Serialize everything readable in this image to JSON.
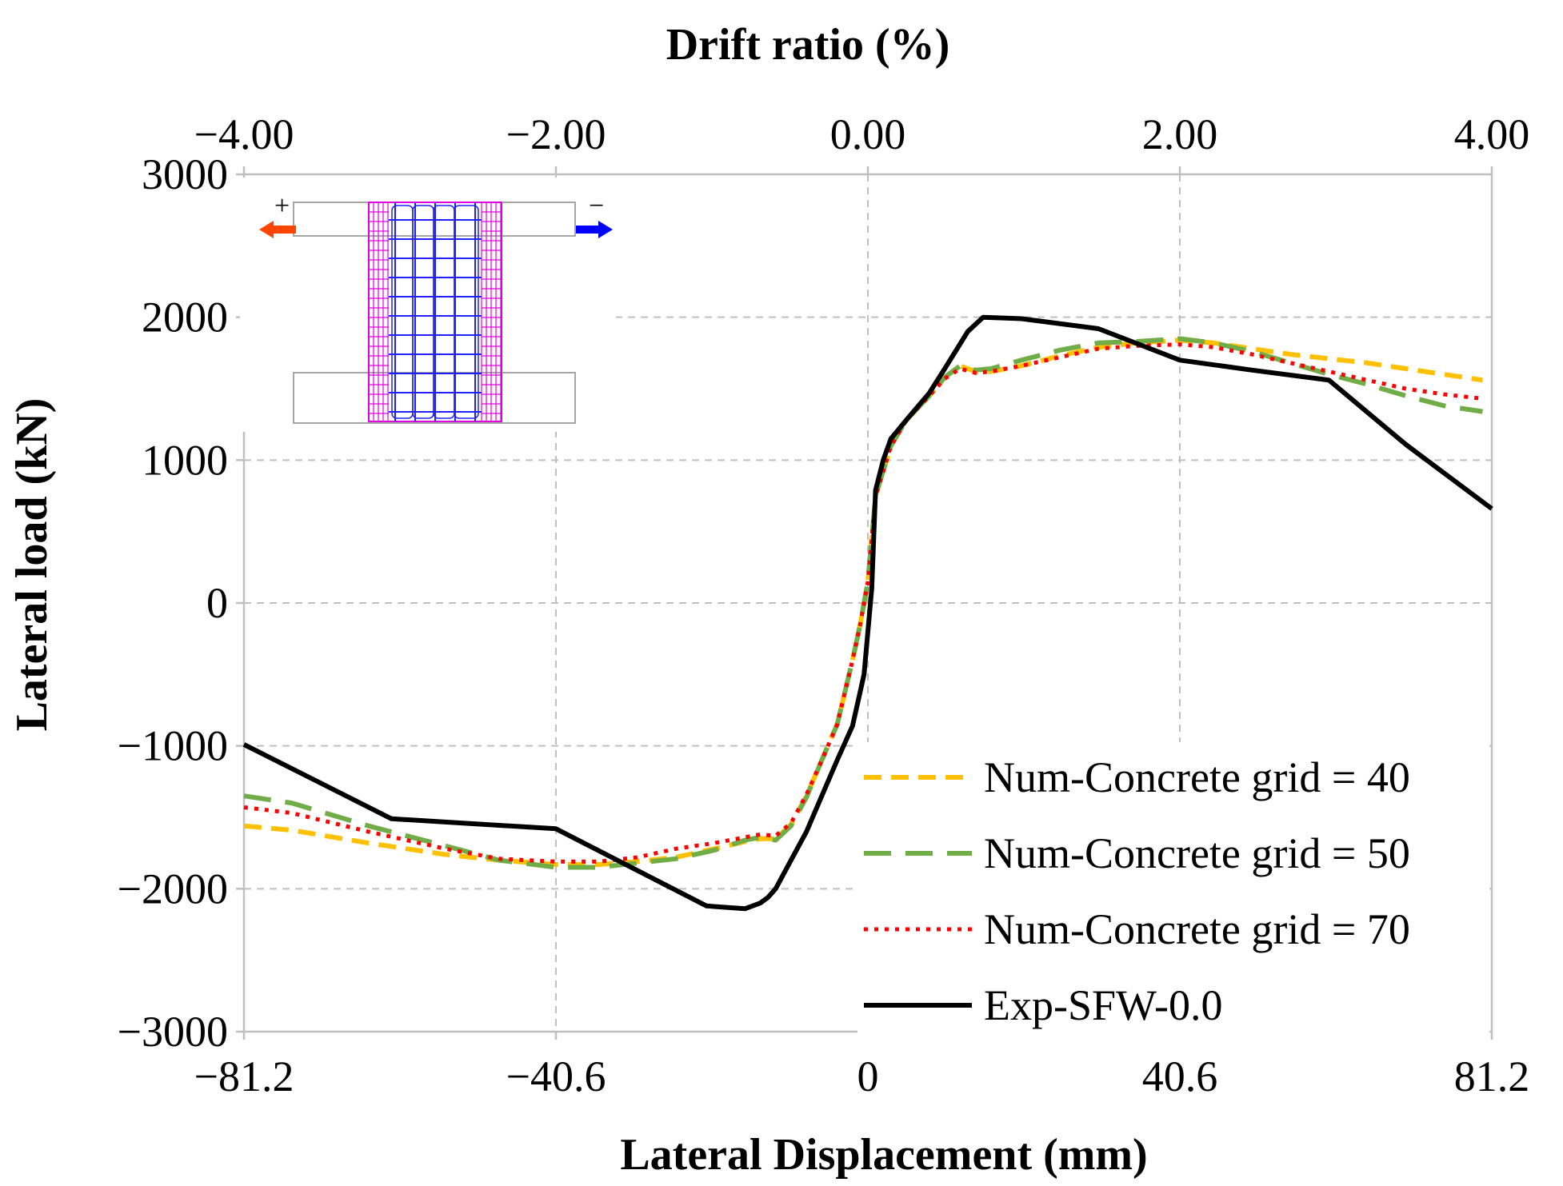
{
  "chart_data": {
    "type": "line",
    "xlabel": "Lateral Displacement (mm)",
    "x2label": "Drift ratio (%)",
    "ylabel": "Lateral load (kN)",
    "xlim": [
      -81.2,
      81.2
    ],
    "ylim": [
      -3000,
      3000
    ],
    "x_ticks": [
      "−81.2",
      "−40.6",
      "0",
      "40.6",
      "81.2"
    ],
    "x2_ticks": [
      "−4.00",
      "−2.00",
      "0.00",
      "2.00",
      "4.00"
    ],
    "y_ticks": [
      "3000",
      "2000",
      "1000",
      "0",
      "−1000",
      "−2000",
      "−3000"
    ],
    "grid": true,
    "legend_position": "bottom-right",
    "inset": {
      "plus": "+",
      "minus": "−"
    },
    "series": [
      {
        "name": "Num-Concrete grid = 40",
        "color": "#FFC000",
        "style": "dashed",
        "x": [
          -81.2,
          -75,
          -65,
          -55,
          -48,
          -40.6,
          -35,
          -30,
          -25,
          -20,
          -16,
          -14,
          -12,
          -10,
          -8,
          -6,
          -4,
          -2,
          -1,
          0,
          1,
          3,
          5,
          8,
          10,
          12,
          14,
          16,
          20,
          25,
          30,
          35,
          40.6,
          45,
          50,
          55,
          60,
          65,
          70,
          75,
          80
        ],
        "y": [
          -1560,
          -1590,
          -1680,
          -1760,
          -1800,
          -1830,
          -1830,
          -1810,
          -1780,
          -1720,
          -1670,
          -1650,
          -1650,
          -1550,
          -1350,
          -1100,
          -850,
          -400,
          -150,
          150,
          750,
          1100,
          1280,
          1450,
          1580,
          1660,
          1620,
          1620,
          1660,
          1730,
          1790,
          1820,
          1840,
          1820,
          1780,
          1740,
          1710,
          1680,
          1640,
          1600,
          1560
        ]
      },
      {
        "name": "Num-Concrete grid = 50",
        "color": "#70AD47",
        "style": "long-dashed",
        "x": [
          -81.2,
          -75,
          -65,
          -55,
          -48,
          -40.6,
          -35,
          -30,
          -25,
          -20,
          -16,
          -14,
          -12,
          -10,
          -8,
          -6,
          -4,
          -2,
          -1,
          0,
          1,
          3,
          5,
          8,
          10,
          12,
          14,
          16,
          20,
          25,
          30,
          35,
          40.6,
          45,
          50,
          55,
          60,
          65,
          70,
          75,
          80
        ],
        "y": [
          -1350,
          -1400,
          -1560,
          -1700,
          -1800,
          -1850,
          -1850,
          -1820,
          -1790,
          -1730,
          -1660,
          -1640,
          -1660,
          -1560,
          -1360,
          -1100,
          -850,
          -400,
          -150,
          150,
          750,
          1100,
          1280,
          1450,
          1580,
          1660,
          1630,
          1640,
          1700,
          1770,
          1820,
          1830,
          1850,
          1820,
          1760,
          1680,
          1600,
          1530,
          1450,
          1380,
          1340
        ]
      },
      {
        "name": "Num-Concrete grid = 70",
        "color": "#FF0000",
        "style": "dotted",
        "x": [
          -81.2,
          -75,
          -65,
          -55,
          -48,
          -40.6,
          -35,
          -30,
          -25,
          -20,
          -16,
          -14,
          -12,
          -10,
          -8,
          -6,
          -4,
          -2,
          -1,
          0,
          1,
          3,
          5,
          8,
          10,
          12,
          14,
          16,
          20,
          25,
          30,
          35,
          40.6,
          45,
          50,
          55,
          60,
          65,
          70,
          75,
          80
        ],
        "y": [
          -1430,
          -1470,
          -1600,
          -1720,
          -1790,
          -1810,
          -1810,
          -1780,
          -1720,
          -1680,
          -1640,
          -1620,
          -1630,
          -1540,
          -1340,
          -1100,
          -850,
          -400,
          -150,
          150,
          750,
          1100,
          1280,
          1450,
          1570,
          1640,
          1610,
          1620,
          1660,
          1720,
          1780,
          1800,
          1810,
          1790,
          1740,
          1680,
          1620,
          1560,
          1500,
          1460,
          1430
        ]
      },
      {
        "name": "Exp-SFW-0.0",
        "color": "#000000",
        "style": "solid",
        "x": [
          -81.2,
          -62,
          -40.6,
          -21,
          -16,
          -14,
          -13,
          -12,
          -10,
          -8,
          -6,
          -4,
          -2,
          -0.5,
          0.5,
          1,
          2,
          3,
          5,
          8,
          10,
          13,
          15,
          20,
          30,
          40.6,
          50,
          60,
          70,
          81.2
        ],
        "y": [
          -990,
          -1510,
          -1580,
          -2120,
          -2140,
          -2100,
          -2060,
          -2000,
          -1800,
          -1600,
          -1350,
          -1100,
          -860,
          -500,
          100,
          790,
          1000,
          1150,
          1280,
          1470,
          1640,
          1900,
          2000,
          1990,
          1920,
          1700,
          1630,
          1560,
          1110,
          660
        ]
      }
    ]
  }
}
